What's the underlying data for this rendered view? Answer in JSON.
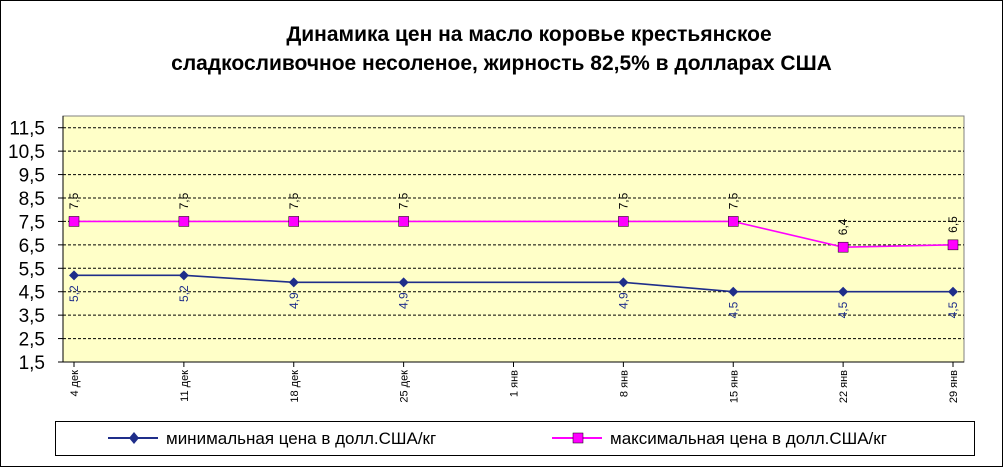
{
  "chart_data": {
    "type": "line",
    "title": "Динамика цен на масло коровье крестьянское сладкосливочное несоленое, жирность 82,5% в долларах США",
    "title_lines": [
      "Динамика цен на масло коровье крестьянское",
      "сладкосливочное несоленое, жирность  82,5%  в долларах США"
    ],
    "categories": [
      "4 дек",
      "11 дек",
      "18 дек",
      "25 дек",
      "1 янв",
      "8 янв",
      "15 янв",
      "22 янв",
      "29 янв"
    ],
    "yticks": [
      "1,5",
      "2,5",
      "3,5",
      "4,5",
      "5,5",
      "6,5",
      "7,5",
      "8,5",
      "9,5",
      "10,5",
      "11,5"
    ],
    "ylim": [
      1.5,
      12.0
    ],
    "grid": true,
    "legend_position": "bottom",
    "series": [
      {
        "name": "минимальная  цена  в долл.США/кг",
        "color": "#1f2e8a",
        "marker": "diamond",
        "values": [
          5.2,
          5.2,
          4.9,
          4.9,
          null,
          4.9,
          4.5,
          4.5,
          4.5
        ],
        "labels": [
          "5,2",
          "5,2",
          "4,9",
          "4,9",
          "",
          "4,9",
          "4,5",
          "4,5",
          "4,5"
        ]
      },
      {
        "name": "максимальная  цена  в долл.США/кг",
        "color": "#ff00ff",
        "marker": "square",
        "values": [
          7.5,
          7.5,
          7.5,
          7.5,
          null,
          7.5,
          7.5,
          6.4,
          6.5
        ],
        "labels": [
          "7,5",
          "7,5",
          "7,5",
          "7,5",
          "",
          "7,5",
          "7,5",
          "6,4",
          "6,5"
        ]
      }
    ]
  },
  "colors": {
    "plot_background": "#ffffc8",
    "grid": "#000000",
    "min_series": "#1f2e8a",
    "max_series": "#ff00ff"
  }
}
